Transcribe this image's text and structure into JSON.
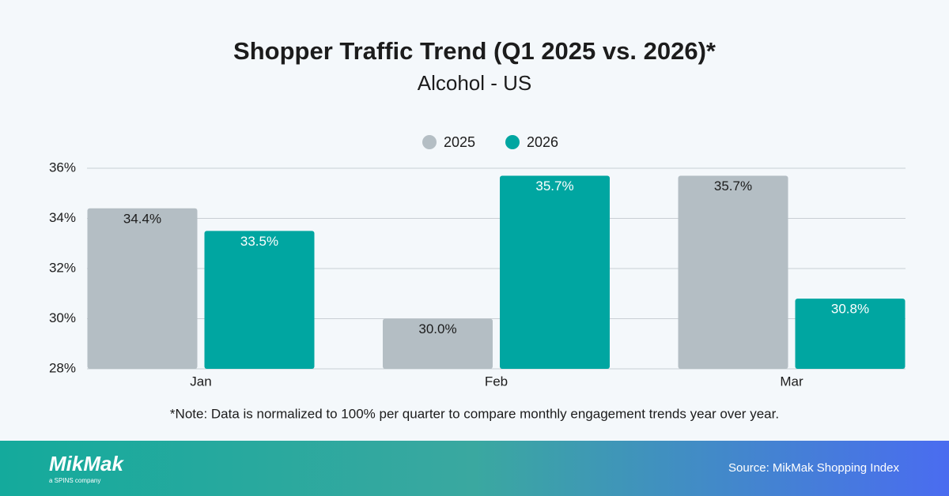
{
  "chart_data": {
    "type": "bar",
    "title": "Shopper Traffic Trend (Q1 2025 vs. 2026)*",
    "subtitle": "Alcohol - US",
    "categories": [
      "Jan",
      "Feb",
      "Mar"
    ],
    "series": [
      {
        "name": "2025",
        "color": "#b4bec4",
        "label_color": "#1c1c1c",
        "values": [
          34.4,
          30.0,
          35.7
        ],
        "value_labels": [
          "34.4%",
          "30.0%",
          "35.7%"
        ]
      },
      {
        "name": "2026",
        "color": "#00a6a1",
        "label_color": "#ffffff",
        "values": [
          33.5,
          35.7,
          30.8
        ],
        "value_labels": [
          "33.5%",
          "35.7%",
          "30.8%"
        ]
      }
    ],
    "ylim": [
      28,
      36
    ],
    "yticks": [
      {
        "value": 28,
        "label": "28%"
      },
      {
        "value": 30,
        "label": "30%"
      },
      {
        "value": 32,
        "label": "32%"
      },
      {
        "value": 34,
        "label": "34%"
      },
      {
        "value": 36,
        "label": "36%"
      }
    ],
    "grid": true,
    "legend": "top",
    "note": "*Note: Data is normalized to 100% per quarter to compare monthly engagement trends year over year."
  },
  "footer": {
    "logo": "MikMak",
    "tagline": "a SPINS company",
    "source": "Source: MikMak Shopping Index"
  }
}
